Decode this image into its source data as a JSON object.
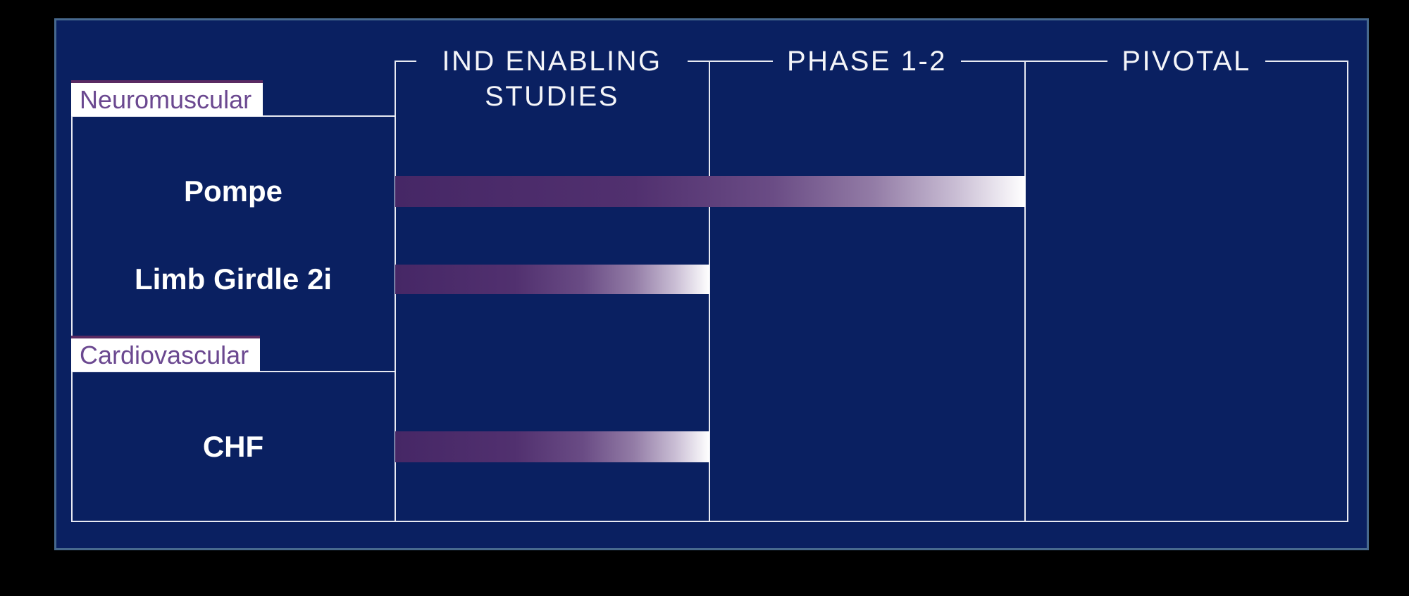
{
  "panel": {
    "background_color": "#0a2061",
    "edge_color": "#47698e",
    "rule_color": "#e8eaf2",
    "section_label_bg": "#ffffff",
    "section_label_text_color": "#6b4890",
    "section_label_top_bar_color": "#5a2a62",
    "program_text_color": "#ffffff"
  },
  "chart_data": {
    "type": "bar",
    "subtype": "clinical-pipeline-stage-progress",
    "stages": [
      "IND ENABLING STUDIES",
      "PHASE 1-2",
      "PIVOTAL"
    ],
    "categories": [
      "Pompe",
      "Limb Girdle 2i",
      "CHF"
    ],
    "category_groups": [
      "Neuromuscular",
      "Neuromuscular",
      "Cardiovascular"
    ],
    "values": [
      2,
      1,
      1
    ],
    "value_scale": "number of stage columns spanned by each bar, of 3 total",
    "bar_gradient": [
      "#462766",
      "#ffffff"
    ],
    "legend": "none",
    "grid": "vertical rules separate the three stage columns; bars drawn over rules"
  },
  "sections": [
    {
      "label": "Neuromuscular",
      "programs": [
        {
          "name": "Pompe"
        },
        {
          "name": "Limb Girdle 2i"
        }
      ]
    },
    {
      "label": "Cardiovascular",
      "programs": [
        {
          "name": "CHF"
        }
      ]
    }
  ]
}
